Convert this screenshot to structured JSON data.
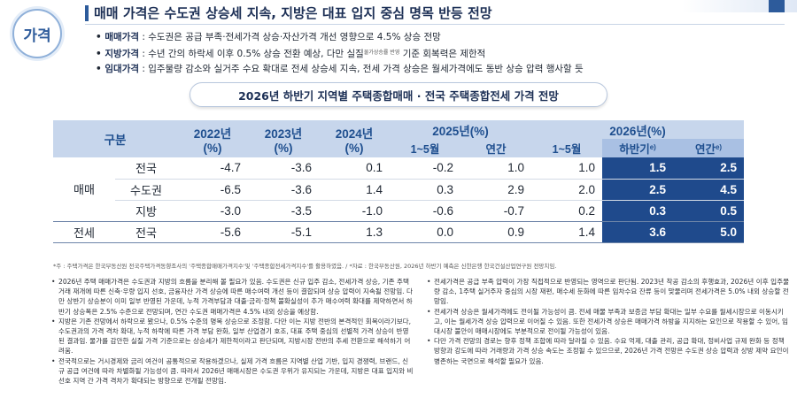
{
  "badge": "가격",
  "title": "매매 가격은 수도권 상승세 지속, 지방은 대표 입지 중심 명목 반등 전망",
  "bullets": [
    {
      "label": "매매가격",
      "text": "수도권은 공급 부족·전세가격 상승·자산가격 개선 영향으로 4.5% 상승 전망"
    },
    {
      "label": "지방가격",
      "text": "수년 간의 하락세 이후 0.5% 상승 전환 예상, 다만 실질",
      "tiny": "물가상승률 반영",
      "text2": " 기준 회복력은 제한적"
    },
    {
      "label": "임대가격",
      "text": "입주물량 감소와 실거주 수요 확대로 전세 상승세 지속, 전세 가격 상승은 월세가격에도 동반 상승 압력 행사할 듯"
    }
  ],
  "table_title": "2026년 하반기 지역별 주택종합매매 · 전국 주택종합전세 가격 전망",
  "table": {
    "header": {
      "gubun": "구분",
      "y2022": "2022년",
      "y2023": "2023년",
      "y2024": "2024년",
      "y2025": "2025년(%)",
      "y2026": "2026년(%)",
      "pct": "(%)",
      "m15": "1~5월",
      "annual": "연간",
      "m15_2026": "1~5월",
      "h2": "하반기",
      "annual_2026": "연간",
      "est": "e)"
    },
    "rows": [
      {
        "group": "매매",
        "region": "전국",
        "v": [
          "-4.7",
          "-3.6",
          "0.1",
          "-0.2",
          "1.0",
          "1.0",
          "1.5",
          "2.5"
        ]
      },
      {
        "group": "",
        "region": "수도권",
        "v": [
          "-6.5",
          "-3.6",
          "1.4",
          "0.3",
          "2.9",
          "2.0",
          "2.5",
          "4.5"
        ]
      },
      {
        "group": "",
        "region": "지방",
        "v": [
          "-3.0",
          "-3.5",
          "-1.0",
          "-0.6",
          "-0.7",
          "0.2",
          "0.3",
          "0.5"
        ]
      },
      {
        "group": "전세",
        "region": "전국",
        "v": [
          "-5.6",
          "-5.1",
          "1.3",
          "0.0",
          "0.9",
          "1.4",
          "3.6",
          "5.0"
        ]
      }
    ]
  },
  "note": "*주 : 주택가격은 한국부동산원 전국주택가격동향조사의 '주택종합매매가격지수'및 '주택종합전세가격지수'를 활용하였음. / *자료 : 한국부동산원, 2026년 하반기 예측은 신한은행 한국건설산업연구원 전망치임.",
  "left_paragraphs": [
    "2026년 주택 매매가격은 수도권과 지방의 흐름을 분리해 볼 필요가 있음. 수도권은 신규 입주 감소, 전세가격 상승, 기존 주택 거래 재개에 따른 신축·우량 입지 선호, 금융자산 가격 상승에 따른 매수여력 개선 등이 결합되며 상승 압력이 지속될 전망임. 다만 상반기 상승분이 이미 일부 반영된 가운데, 누적 가격부담과 대출·금리·정책 불확실성이 추가 매수여력 확대를 제약하면서 하반기 상승폭은 2.5% 수준으로 전망되며, 연간 수도권 매매가격은 4.5% 내외 상승을 예상함.",
    "지방은 기존 전망에서 하락으로 봤으나, 0.5% 수준의 명목 상승으로 조정함. 다만 이는 지방 전반의 본격적인 회복이라기보다, 수도권과의 가격 격차 확대, 누적 하락에 따른 가격 부담 완화, 일부 산업경기 호조, 대표 주택 중심의 선별적 가격 상승이 반영된 결과임. 물가를 감안한 실질 가격 기준으로는 상승세가 제한적이라고 판단되며, 지방시장 전반의 추세 전환으로 해석하기 어려움.",
    "전국적으로는 거시경제와 금리 여건이 공통적으로 작용하겠으나, 실제 가격 흐름은 지역별 산업 기반, 입지 경쟁력, 브랜드, 신규 공급 여건에 따라 차별화될 가능성이 큼. 따라서 2026년 매매시장은 수도권 우위가 유지되는 가운데, 지방은 대표 입지와 비선호 지역 간 가격 격차가 확대되는 방향으로 전개될 전망임."
  ],
  "right_paragraphs": [
    "전세가격은 공급 부족 압력이 가장 직접적으로 반영되는 영역으로 판단됨. 2023년 착공 감소의 후행효과, 2026년 이후 입주물량 감소, 1주택 실거주자 중심의 시장 재편, 매수세 둔화에 따른 임차수요 잔류 등이 맞물리며 전세가격은 5.0% 내외 상승할 전망임.",
    "전세가격 상승은 월세가격에도 전이될 가능성이 큼. 전세 매물 부족과 보증금 부담 확대는 일부 수요를 월세시장으로 이동시키고, 이는 월세가격 상승 압력으로 이어질 수 있음. 또한 전세가격 상승은 매매가격 하방을 지지하는 요인으로 작용할 수 있어, 임대시장 불안이 매매시장에도 부분적으로 전이될 가능성이 있음.",
    "다만 가격 전망의 경로는 향후 정책 조합에 따라 달라질 수 있음. 수요 억제, 대출 관리, 공급 확대, 정비사업 규제 완화 등 정책 방향과 강도에 따라 거래량과 가격 상승 속도는 조정될 수 있으므로, 2026년 가격 전망은 수도권 상승 압력과 상방 제약 요인이 병존하는 국면으로 해석할 필요가 있음."
  ]
}
